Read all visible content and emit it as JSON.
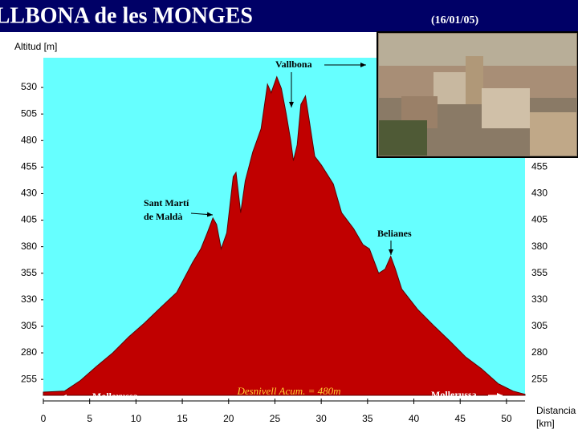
{
  "chart_data": {
    "type": "area",
    "title": "VALLBONA de les MONGES",
    "subtitle": "(16/01/05)",
    "y_label": "Altitud [m]",
    "x_label": "Distancia [km]",
    "x": [
      0,
      2.3,
      4.0,
      5.7,
      7.5,
      9.2,
      10.9,
      12.7,
      14.4,
      16.1,
      17.0,
      17.7,
      18.3,
      18.7,
      19.2,
      19.8,
      20.5,
      20.8,
      21.3,
      21.8,
      22.6,
      23.5,
      24.2,
      24.6,
      25.2,
      25.7,
      26.2,
      26.7,
      27.0,
      27.4,
      27.8,
      28.3,
      28.7,
      29.3,
      30.0,
      31.3,
      32.2,
      33.5,
      34.5,
      35.2,
      36.2,
      36.9,
      37.5,
      38.0,
      38.7,
      40.4,
      42.1,
      43.9,
      45.6,
      47.3,
      49.1,
      50.7,
      52.0
    ],
    "y": [
      243,
      244,
      254,
      267,
      280,
      295,
      308,
      323,
      337,
      365,
      378,
      393,
      407,
      401,
      378,
      393,
      446,
      450,
      412,
      442,
      469,
      491,
      533,
      525,
      540,
      529,
      506,
      480,
      461,
      476,
      514,
      522,
      499,
      465,
      457,
      439,
      412,
      397,
      382,
      378,
      355,
      359,
      371,
      359,
      340,
      321,
      306,
      291,
      276,
      265,
      251,
      244,
      241
    ],
    "color": "#c00000",
    "background": "#66ffff",
    "xlim": [
      0,
      52
    ],
    "ylim": [
      240,
      558
    ],
    "xticks": [
      0,
      5,
      10,
      15,
      20,
      25,
      30,
      35,
      40,
      45,
      50
    ],
    "yticks": [
      255,
      280,
      305,
      330,
      355,
      380,
      405,
      430,
      455,
      480,
      505,
      530
    ],
    "annotations": [
      {
        "text": "Vallbona"
      },
      {
        "text": "Sant Martí"
      },
      {
        "text": "de Maldà"
      },
      {
        "text": "Belianes"
      },
      {
        "text": "Mollerussa"
      },
      {
        "text": "Mollerussa"
      },
      {
        "text": "Desnivell Acum. = 480m"
      }
    ]
  }
}
